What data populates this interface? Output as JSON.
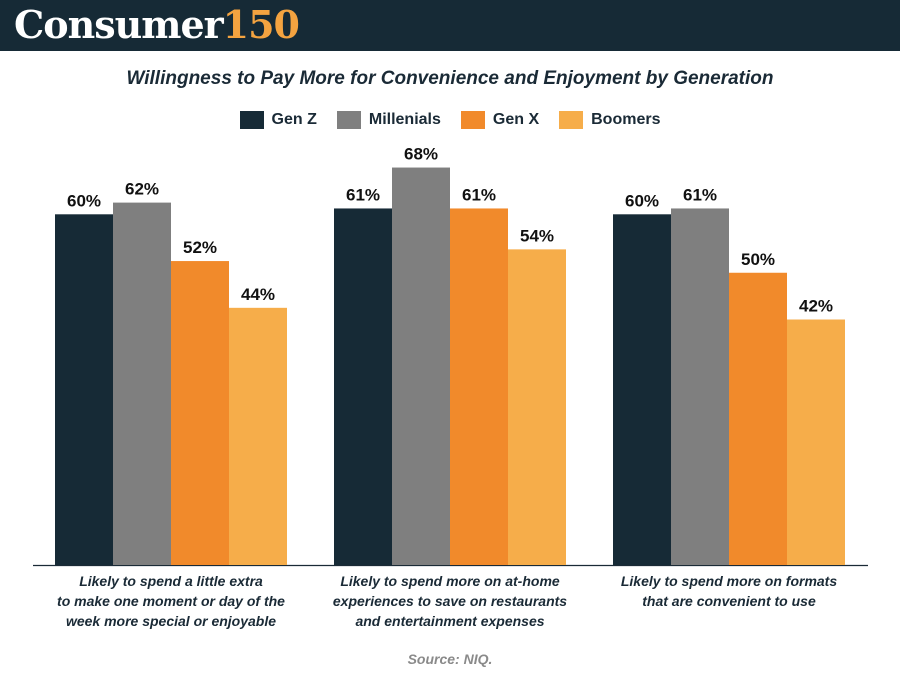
{
  "header": {
    "logo_text": "Consumer",
    "logo_number": "150"
  },
  "chart_data": {
    "type": "bar",
    "title": "Willingness to Pay More for Convenience and Enjoyment by Generation",
    "categories": [
      "Likely to spend a little extra to make one moment or day of the week more special or enjoyable",
      "Likely to spend more on at-home experiences to save on restaurants and entertainment expenses",
      "Likely to spend more on formats that are convenient to use"
    ],
    "category_lines": [
      [
        "Likely to spend a little extra",
        "to make one moment or day of the",
        "week more special or enjoyable"
      ],
      [
        "Likely to spend more on at-home",
        "experiences to save on restaurants",
        "and entertainment expenses"
      ],
      [
        "Likely to spend more on formats",
        "that are convenient to use"
      ]
    ],
    "series": [
      {
        "name": "Gen Z",
        "color": "#162a36",
        "values": [
          60,
          61,
          60
        ]
      },
      {
        "name": "Millenials",
        "color": "#7f7f7f",
        "values": [
          62,
          68,
          61
        ]
      },
      {
        "name": "Gen X",
        "color": "#f18a2b",
        "values": [
          52,
          61,
          50
        ]
      },
      {
        "name": "Boomers",
        "color": "#f6ad4a",
        "values": [
          44,
          54,
          42
        ]
      }
    ],
    "value_suffix": "%",
    "ylim": [
      0,
      68
    ],
    "xlabel": "",
    "ylabel": "",
    "grid": false,
    "legend_position": "top-center"
  },
  "source": "Source: NIQ."
}
